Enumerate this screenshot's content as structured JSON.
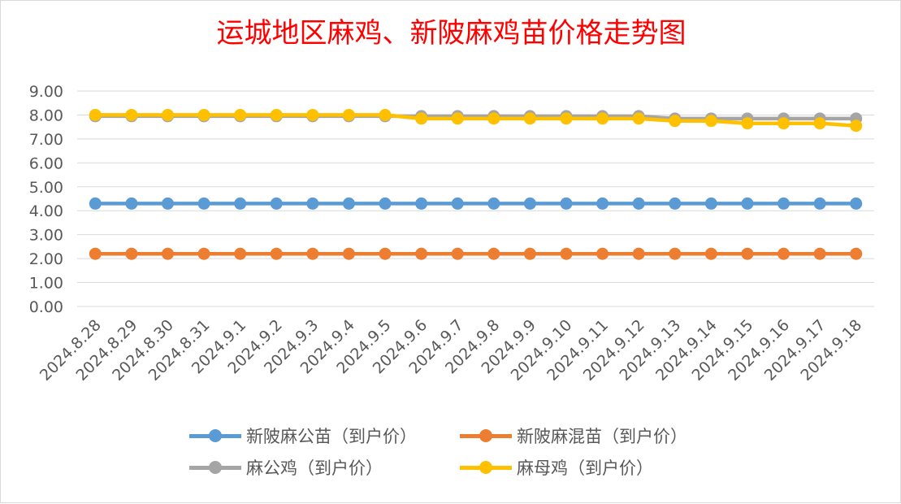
{
  "chart_data": {
    "type": "line",
    "title": "运城地区麻鸡、新陂麻鸡苗价格走势图",
    "categories": [
      "2024.8.28",
      "2024.8.29",
      "2024.8.30",
      "2024.8.31",
      "2024.9.1",
      "2024.9.2",
      "2024.9.3",
      "2024.9.4",
      "2024.9.5",
      "2024.9.6",
      "2024.9.7",
      "2024.9.8",
      "2024.9.9",
      "2024.9.10",
      "2024.9.11",
      "2024.9.12",
      "2024.9.13",
      "2024.9.14",
      "2024.9.15",
      "2024.9.16",
      "2024.9.17",
      "2024.9.18"
    ],
    "y_ticks": [
      "0.00",
      "1.00",
      "2.00",
      "3.00",
      "4.00",
      "5.00",
      "6.00",
      "7.00",
      "8.00",
      "9.00"
    ],
    "ylim": [
      0,
      9
    ],
    "grid": true,
    "legend_position": "bottom",
    "series": [
      {
        "name": "新陂麻公苗（到户价）",
        "color": "#5b9bd5",
        "values": [
          4.3,
          4.3,
          4.3,
          4.3,
          4.3,
          4.3,
          4.3,
          4.3,
          4.3,
          4.3,
          4.3,
          4.3,
          4.3,
          4.3,
          4.3,
          4.3,
          4.3,
          4.3,
          4.3,
          4.3,
          4.3,
          4.3
        ]
      },
      {
        "name": "新陂麻混苗（到户价）",
        "color": "#ed7d31",
        "values": [
          2.2,
          2.2,
          2.2,
          2.2,
          2.2,
          2.2,
          2.2,
          2.2,
          2.2,
          2.2,
          2.2,
          2.2,
          2.2,
          2.2,
          2.2,
          2.2,
          2.2,
          2.2,
          2.2,
          2.2,
          2.2,
          2.2
        ]
      },
      {
        "name": "麻公鸡（到户价）",
        "color": "#a5a5a5",
        "values": [
          7.95,
          7.95,
          7.95,
          7.95,
          7.95,
          7.95,
          7.95,
          7.95,
          7.95,
          7.95,
          7.95,
          7.95,
          7.95,
          7.95,
          7.95,
          7.95,
          7.85,
          7.85,
          7.85,
          7.85,
          7.85,
          7.85
        ]
      },
      {
        "name": "麻母鸡（到户价）",
        "color": "#ffc000",
        "values": [
          8.0,
          8.0,
          8.0,
          8.0,
          8.0,
          8.0,
          8.0,
          8.0,
          8.0,
          7.85,
          7.85,
          7.85,
          7.85,
          7.85,
          7.85,
          7.85,
          7.75,
          7.75,
          7.65,
          7.65,
          7.65,
          7.55
        ]
      }
    ]
  }
}
